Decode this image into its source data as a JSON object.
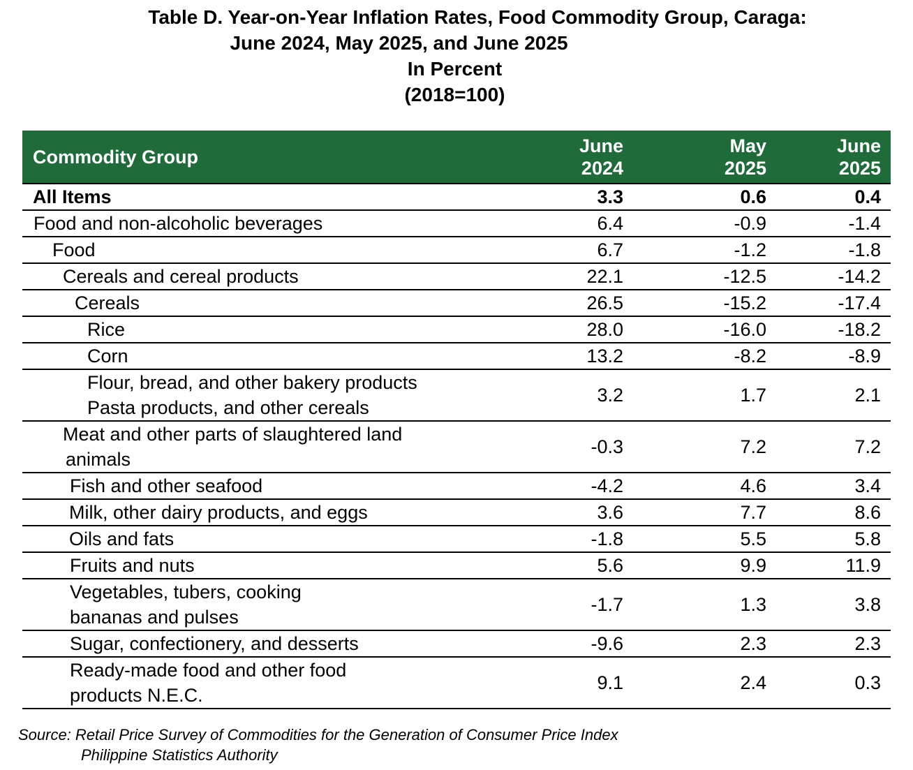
{
  "title": {
    "line1": "Table D. Year-on-Year Inflation Rates, Food Commodity Group, Caraga:",
    "line2": "June 2024, May 2025, and June 2025",
    "line3": "In Percent",
    "line4": "(2018=100)"
  },
  "table": {
    "headers": {
      "name": "Commodity Group",
      "col1": {
        "line1": "June",
        "line2": "2024"
      },
      "col2": {
        "line1": "May",
        "line2": "2025"
      },
      "col3": {
        "line1": "June",
        "line2": "2025"
      }
    },
    "rows": [
      {
        "name": "All Items",
        "v1": "3.3",
        "v2": "0.6",
        "v3": "0.4"
      },
      {
        "name": "Food and non-alcoholic beverages",
        "v1": "6.4",
        "v2": "-0.9",
        "v3": "-1.4"
      },
      {
        "name": "Food",
        "v1": "6.7",
        "v2": "-1.2",
        "v3": "-1.8"
      },
      {
        "name": "Cereals and cereal products",
        "v1": "22.1",
        "v2": "-12.5",
        "v3": "-14.2"
      },
      {
        "name": "Cereals",
        "v1": "26.5",
        "v2": "-15.2",
        "v3": "-17.4"
      },
      {
        "name": "Rice",
        "v1": "28.0",
        "v2": "-16.0",
        "v3": "-18.2"
      },
      {
        "name": "Corn",
        "v1": "13.2",
        "v2": "-8.2",
        "v3": "-8.9"
      },
      {
        "name_line1": "Flour, bread, and other bakery products",
        "name_line2": "Pasta products, and other cereals",
        "v1": "3.2",
        "v2": "1.7",
        "v3": "2.1"
      },
      {
        "name_line1": "Meat and other parts of slaughtered land",
        "name_line2": "animals",
        "v1": "-0.3",
        "v2": "7.2",
        "v3": "7.2"
      },
      {
        "name": "Fish and other seafood",
        "v1": "-4.2",
        "v2": "4.6",
        "v3": "3.4"
      },
      {
        "name": "Milk, other dairy products, and eggs",
        "v1": "3.6",
        "v2": "7.7",
        "v3": "8.6"
      },
      {
        "name": "Oils and fats",
        "v1": "-1.8",
        "v2": "5.5",
        "v3": "5.8"
      },
      {
        "name": "Fruits and nuts",
        "v1": "5.6",
        "v2": "9.9",
        "v3": "11.9"
      },
      {
        "name_line1": "Vegetables, tubers, cooking",
        "name_line2": "bananas and pulses",
        "v1": "-1.7",
        "v2": "1.3",
        "v3": "3.8"
      },
      {
        "name": "Sugar, confectionery, and desserts",
        "v1": "-9.6",
        "v2": "2.3",
        "v3": "2.3"
      },
      {
        "name_line1": "Ready-made food and other food",
        "name_line2": "products N.E.C.",
        "v1": "9.1",
        "v2": "2.4",
        "v3": "0.3"
      }
    ]
  },
  "source": {
    "line1": "Source: Retail Price Survey of Commodities for the Generation of Consumer Price Index",
    "line2": "Philippine Statistics Authority"
  },
  "colors": {
    "header_bg": "#1f6b3a",
    "header_text": "#ffffff"
  }
}
